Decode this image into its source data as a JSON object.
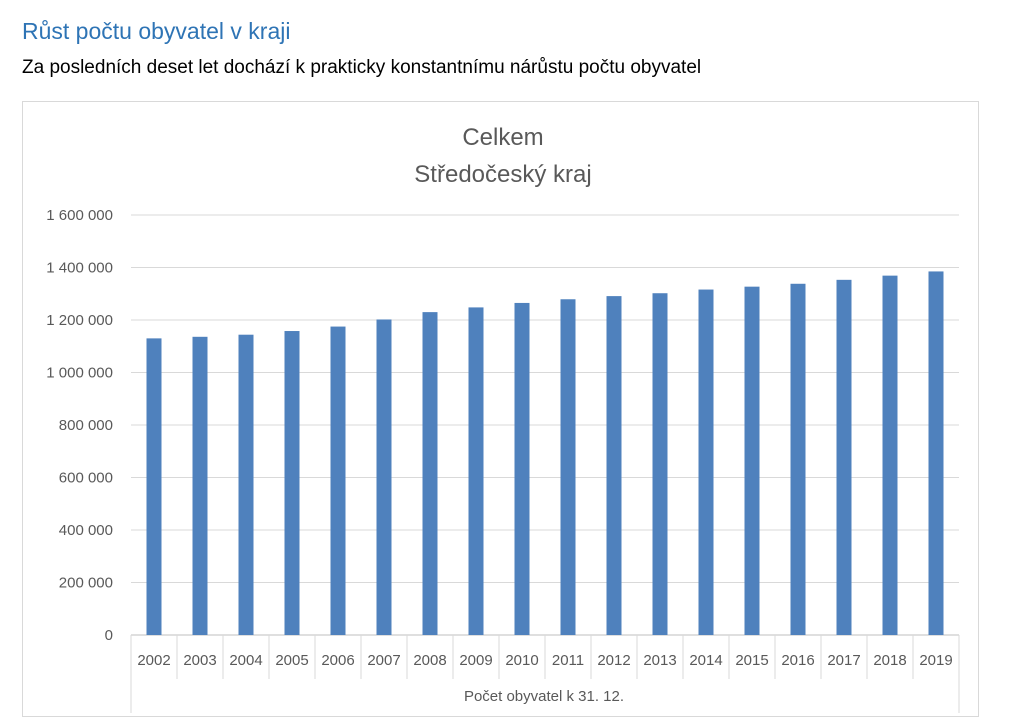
{
  "heading": "Růst počtu obyvatel v kraji",
  "subheading": "Za posledních deset let dochází k prakticky konstantnímu nárůstu počtu obyvatel",
  "chart_data": {
    "type": "bar",
    "title": [
      "Celkem",
      "Středočeský kraj"
    ],
    "categories": [
      "2002",
      "2003",
      "2004",
      "2005",
      "2006",
      "2007",
      "2008",
      "2009",
      "2010",
      "2011",
      "2012",
      "2013",
      "2014",
      "2015",
      "2016",
      "2017",
      "2018",
      "2019"
    ],
    "series": [
      {
        "values": [
          1130000,
          1136000,
          1144000,
          1158000,
          1175000,
          1202000,
          1230000,
          1248000,
          1265000,
          1279000,
          1291000,
          1302000,
          1316000,
          1327000,
          1338000,
          1353000,
          1369000,
          1385000
        ]
      }
    ],
    "xlabel": "Počet obyvatel k 31. 12.",
    "ylabel": "",
    "ylim": [
      0,
      1600000
    ],
    "y_ticks": [
      0,
      200000,
      400000,
      600000,
      800000,
      1000000,
      1200000,
      1400000,
      1600000
    ],
    "y_tick_labels": [
      "0",
      "200 000",
      "400 000",
      "600 000",
      "800 000",
      "1 000 000",
      "1 200 000",
      "1 400 000",
      "1 600 000"
    ],
    "bar_color": "#4f81bd",
    "grid": true,
    "legend": "none"
  }
}
